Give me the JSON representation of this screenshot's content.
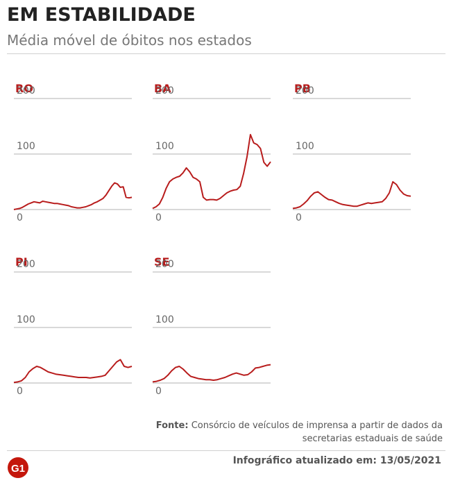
{
  "header": {
    "title": "EM ESTABILIDADE",
    "subtitle": "Média móvel de óbitos nos estados"
  },
  "footer": {
    "source_label": "Fonte:",
    "source_text": "Consórcio de veículos de imprensa a partir de dados da secretarias estaduais de saúde",
    "updated": "Infográfico atualizado em: 13/05/2021",
    "logo_text": "G1"
  },
  "colors": {
    "line": "#b81c1c",
    "label": "#b81c1c",
    "grid": "#b0b0b0",
    "logo": "#c4170c"
  },
  "chart_data": [
    {
      "type": "line",
      "title": "RO",
      "ylim": [
        0,
        200
      ],
      "yticks": [
        "200",
        "100",
        "0"
      ],
      "values": [
        0,
        1,
        2,
        4,
        7,
        10,
        12,
        14,
        13,
        12,
        15,
        14,
        13,
        12,
        11,
        11,
        10,
        9,
        8,
        7,
        5,
        4,
        3,
        3,
        4,
        5,
        7,
        9,
        12,
        14,
        17,
        20,
        26,
        34,
        42,
        48,
        46,
        40,
        41,
        22,
        21,
        22
      ]
    },
    {
      "type": "line",
      "title": "BA",
      "ylim": [
        0,
        200
      ],
      "yticks": [
        "200",
        "100",
        "0"
      ],
      "values": [
        2,
        5,
        10,
        22,
        38,
        50,
        55,
        58,
        60,
        66,
        75,
        68,
        58,
        55,
        50,
        22,
        17,
        18,
        18,
        17,
        20,
        25,
        30,
        33,
        35,
        36,
        42,
        65,
        95,
        135,
        120,
        117,
        110,
        85,
        78,
        86
      ]
    },
    {
      "type": "line",
      "title": "PB",
      "ylim": [
        0,
        200
      ],
      "yticks": [
        "200",
        "100",
        "0"
      ],
      "values": [
        2,
        3,
        5,
        10,
        16,
        24,
        30,
        32,
        27,
        22,
        18,
        17,
        14,
        11,
        9,
        8,
        7,
        6,
        6,
        8,
        10,
        12,
        11,
        12,
        13,
        14,
        20,
        30,
        50,
        45,
        35,
        28,
        25,
        24
      ]
    },
    {
      "type": "line",
      "title": "PI",
      "ylim": [
        0,
        200
      ],
      "yticks": [
        "200",
        "100",
        "0"
      ],
      "values": [
        1,
        2,
        4,
        10,
        20,
        26,
        30,
        28,
        24,
        20,
        18,
        16,
        15,
        14,
        13,
        12,
        11,
        10,
        10,
        10,
        9,
        10,
        11,
        12,
        14,
        22,
        30,
        38,
        42,
        30,
        28,
        30
      ]
    },
    {
      "type": "line",
      "title": "SE",
      "ylim": [
        0,
        200
      ],
      "yticks": [
        "200",
        "100",
        "0"
      ],
      "values": [
        2,
        3,
        5,
        8,
        14,
        22,
        28,
        30,
        25,
        18,
        12,
        10,
        8,
        7,
        6,
        6,
        5,
        6,
        8,
        10,
        13,
        16,
        18,
        16,
        14,
        15,
        20,
        27,
        28,
        30,
        32,
        33
      ]
    }
  ]
}
